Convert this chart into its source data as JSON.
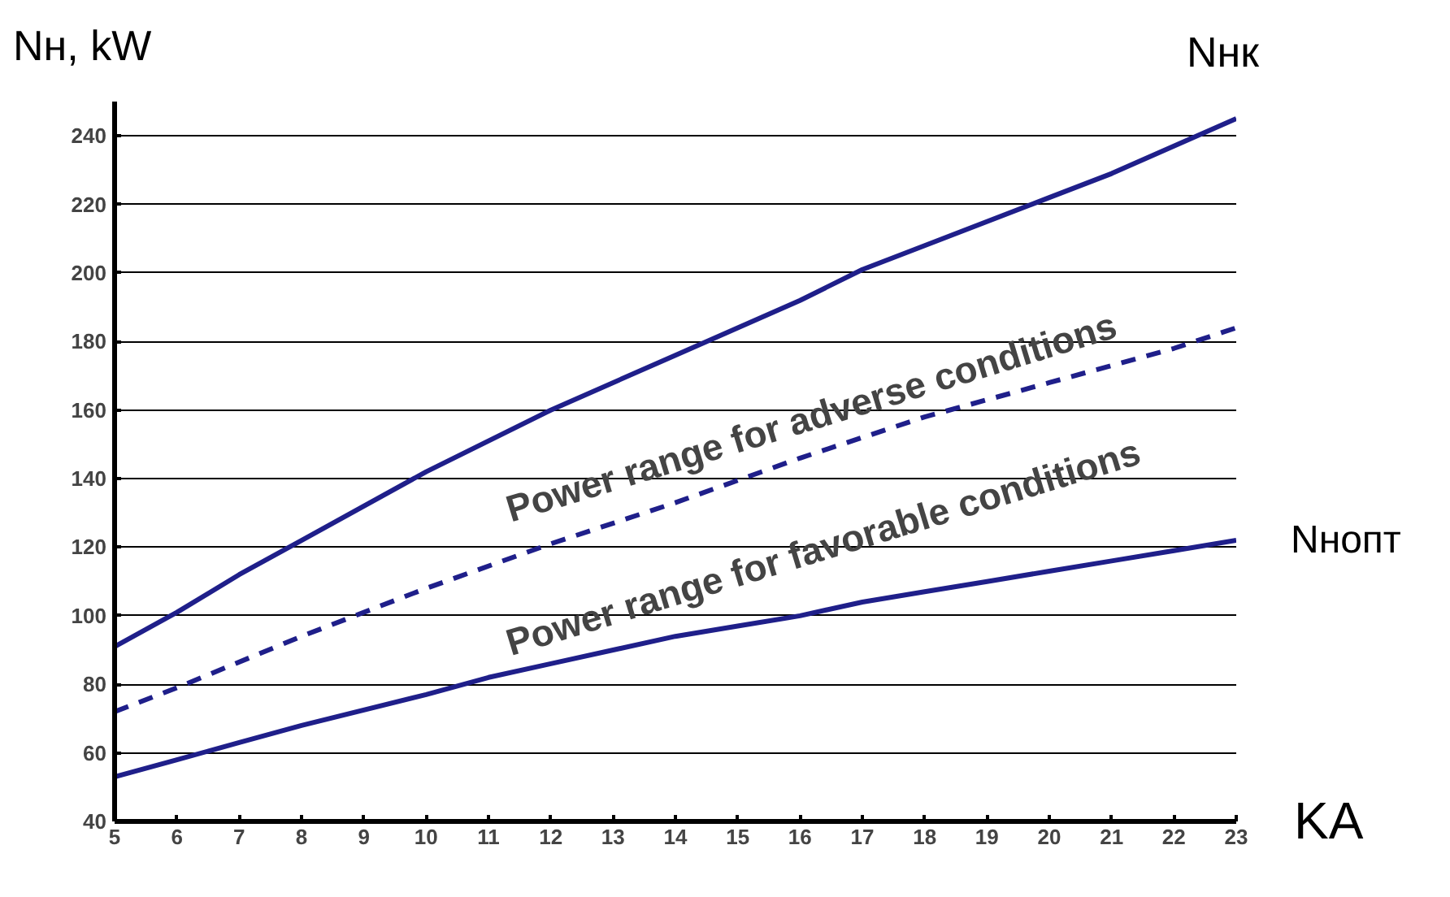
{
  "chart_data": {
    "type": "line",
    "ylabel": "Nн, kW",
    "xlabel": "KА",
    "x": [
      5,
      6,
      7,
      8,
      10,
      12,
      14,
      16,
      17,
      18,
      20,
      21,
      22,
      23
    ],
    "series": [
      {
        "name": "Nнк",
        "color": "#1f1f8a",
        "line_style": "solid",
        "values": [
          91,
          101,
          112,
          122,
          142,
          160,
          176,
          192,
          201,
          208,
          222,
          229,
          237,
          245
        ]
      },
      {
        "color": "#1f1f8a",
        "line_style": "dashed",
        "x": [
          5,
          6,
          8,
          10,
          12,
          14,
          16,
          18,
          20,
          22,
          23
        ],
        "values": [
          72,
          79,
          94,
          108,
          121,
          133,
          146,
          158,
          168,
          178,
          184
        ]
      },
      {
        "name": "Nнопт",
        "color": "#1f1f8a",
        "line_style": "solid",
        "x": [
          5,
          6,
          7,
          8,
          10,
          11,
          12,
          13,
          14,
          15,
          16,
          17,
          18,
          19,
          20,
          21,
          22,
          23
        ],
        "values": [
          53,
          58,
          63,
          68,
          77,
          82,
          86,
          90,
          94,
          97,
          100,
          104,
          107,
          110,
          113,
          116,
          119,
          122
        ]
      }
    ],
    "annotations": [
      "Power range for adverse conditions",
      "Power range for favorable conditions"
    ],
    "xlim": [
      5,
      23
    ],
    "ylim": [
      40,
      250
    ],
    "xticks": [
      5,
      6,
      7,
      8,
      9,
      10,
      11,
      12,
      13,
      14,
      15,
      16,
      17,
      18,
      19,
      20,
      21,
      22,
      23
    ],
    "yticks": [
      40,
      60,
      80,
      100,
      120,
      140,
      160,
      180,
      200,
      220,
      240
    ],
    "grid": "y",
    "legend": false,
    "marker": "none"
  }
}
